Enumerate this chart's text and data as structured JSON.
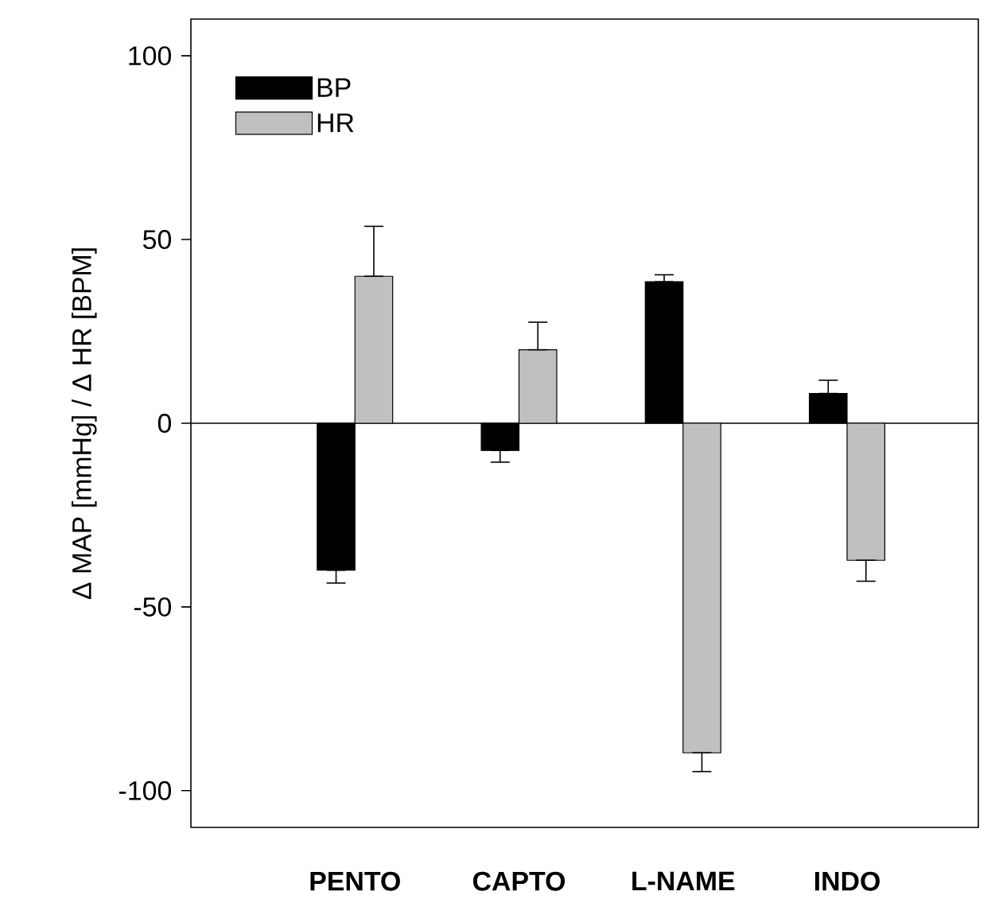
{
  "chart_data": {
    "type": "bar",
    "ylabel": "Δ MAP [mmHg] / Δ HR [BPM]",
    "categories": [
      "PENTO",
      "CAPTO",
      "L-NAME",
      "INDO"
    ],
    "series": [
      {
        "name": "BP",
        "color": "#000000",
        "values": [
          -40,
          -7.4,
          38.5,
          8.1
        ],
        "errors": [
          [
            -43.5,
            -40
          ],
          [
            -10.6,
            -7.4
          ],
          [
            38.5,
            40.4
          ],
          [
            8.1,
            11.7
          ]
        ]
      },
      {
        "name": "HR",
        "color": "#c0c0c0",
        "values": [
          40,
          20,
          -89.7,
          -37.3
        ],
        "errors": [
          [
            40,
            53.6
          ],
          [
            20,
            27.5
          ],
          [
            -94.8,
            -89.7
          ],
          [
            -43,
            -37.3
          ]
        ]
      }
    ],
    "ylim": [
      -110,
      110
    ],
    "yticks": [
      -100,
      -50,
      0,
      50,
      100
    ],
    "legend": "top left"
  }
}
